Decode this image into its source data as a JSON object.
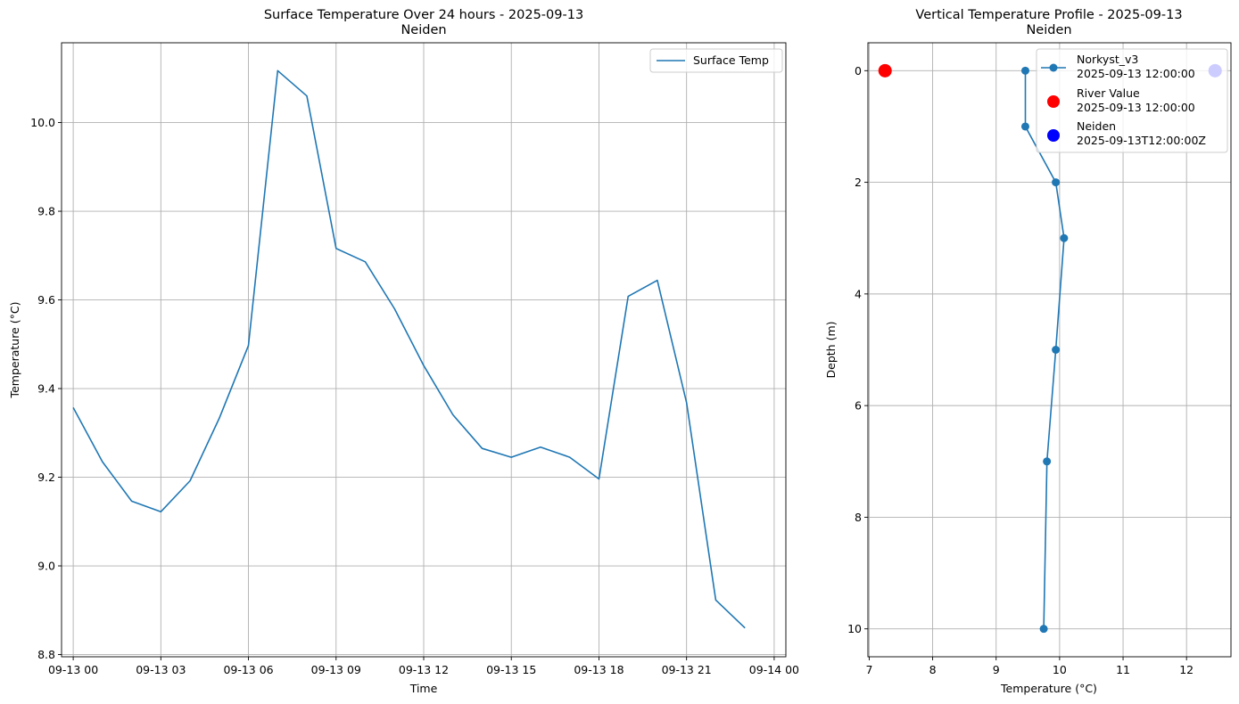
{
  "chart_data": [
    {
      "type": "line",
      "title": "Surface Temperature Over 24 hours - 2025-09-13",
      "subtitle": "Neiden",
      "xlabel": "Time",
      "ylabel": "Temperature (°C)",
      "x": [
        "2025-09-13 00:00",
        "2025-09-13 01:00",
        "2025-09-13 02:00",
        "2025-09-13 03:00",
        "2025-09-13 04:00",
        "2025-09-13 05:00",
        "2025-09-13 06:00",
        "2025-09-13 07:00",
        "2025-09-13 08:00",
        "2025-09-13 09:00",
        "2025-09-13 10:00",
        "2025-09-13 11:00",
        "2025-09-13 12:00",
        "2025-09-13 13:00",
        "2025-09-13 14:00",
        "2025-09-13 15:00",
        "2025-09-13 16:00",
        "2025-09-13 17:00",
        "2025-09-13 18:00",
        "2025-09-13 19:00",
        "2025-09-13 20:00",
        "2025-09-13 21:00",
        "2025-09-13 22:00",
        "2025-09-13 23:00"
      ],
      "series": [
        {
          "name": "Surface Temp",
          "color": "#1f77b4",
          "values": [
            9.357,
            9.235,
            9.146,
            9.122,
            9.192,
            9.333,
            9.497,
            10.117,
            10.06,
            9.716,
            9.686,
            9.58,
            9.452,
            9.341,
            9.265,
            9.245,
            9.268,
            9.245,
            9.196,
            9.608,
            9.644,
            9.368,
            8.923,
            8.86
          ]
        }
      ],
      "xlim": [
        "2025-09-12 23:36",
        "2025-09-14 00:24"
      ],
      "ylim": [
        8.795,
        10.18
      ],
      "xticks": [
        {
          "value": "2025-09-13 00:00",
          "label": "09-13 00"
        },
        {
          "value": "2025-09-13 03:00",
          "label": "09-13 03"
        },
        {
          "value": "2025-09-13 06:00",
          "label": "09-13 06"
        },
        {
          "value": "2025-09-13 09:00",
          "label": "09-13 09"
        },
        {
          "value": "2025-09-13 12:00",
          "label": "09-13 12"
        },
        {
          "value": "2025-09-13 15:00",
          "label": "09-13 15"
        },
        {
          "value": "2025-09-13 18:00",
          "label": "09-13 18"
        },
        {
          "value": "2025-09-13 21:00",
          "label": "09-13 21"
        },
        {
          "value": "2025-09-14 00:00",
          "label": "09-14 00"
        }
      ],
      "yticks": [
        {
          "value": 8.8,
          "label": "8.8"
        },
        {
          "value": 9.0,
          "label": "9.0"
        },
        {
          "value": 9.2,
          "label": "9.2"
        },
        {
          "value": 9.4,
          "label": "9.4"
        },
        {
          "value": 9.6,
          "label": "9.6"
        },
        {
          "value": 9.8,
          "label": "9.8"
        },
        {
          "value": 10.0,
          "label": "10.0"
        }
      ],
      "grid": true,
      "legend_position": "top-right"
    },
    {
      "type": "line",
      "title": "Vertical Temperature Profile - 2025-09-13",
      "subtitle": "Neiden",
      "xlabel": "Temperature (°C)",
      "ylabel": "Depth (m)",
      "xlim": [
        6.98,
        12.7
      ],
      "ylim": [
        10.5,
        -0.5
      ],
      "xticks": [
        {
          "value": 7,
          "label": "7"
        },
        {
          "value": 8,
          "label": "8"
        },
        {
          "value": 9,
          "label": "9"
        },
        {
          "value": 10,
          "label": "10"
        },
        {
          "value": 11,
          "label": "11"
        },
        {
          "value": 12,
          "label": "12"
        }
      ],
      "yticks": [
        {
          "value": 0,
          "label": "0"
        },
        {
          "value": 2,
          "label": "2"
        },
        {
          "value": 4,
          "label": "4"
        },
        {
          "value": 6,
          "label": "6"
        },
        {
          "value": 8,
          "label": "8"
        },
        {
          "value": 10,
          "label": "10"
        }
      ],
      "series": [
        {
          "name": "Norkyst_v3",
          "name_time": "2025-09-13 12:00:00",
          "color": "#1f77b4",
          "marker": "line-with-dots",
          "points": [
            {
              "x": 9.46,
              "y": 0
            },
            {
              "x": 9.46,
              "y": 1
            },
            {
              "x": 9.94,
              "y": 2
            },
            {
              "x": 10.07,
              "y": 3
            },
            {
              "x": 9.94,
              "y": 5
            },
            {
              "x": 9.8,
              "y": 7
            },
            {
              "x": 9.75,
              "y": 10
            }
          ]
        },
        {
          "name": "River Value",
          "name_time": "2025-09-13 12:00:00",
          "color": "#ff0000",
          "marker": "large-dot",
          "points": [
            {
              "x": 7.25,
              "y": 0
            }
          ]
        },
        {
          "name": "Neiden",
          "name_time": "2025-09-13T12:00:00Z",
          "color": "#0000ff",
          "marker": "large-dot",
          "points": [
            {
              "x": 12.45,
              "y": 0
            }
          ]
        }
      ],
      "grid": true,
      "legend_position": "top-right"
    }
  ]
}
